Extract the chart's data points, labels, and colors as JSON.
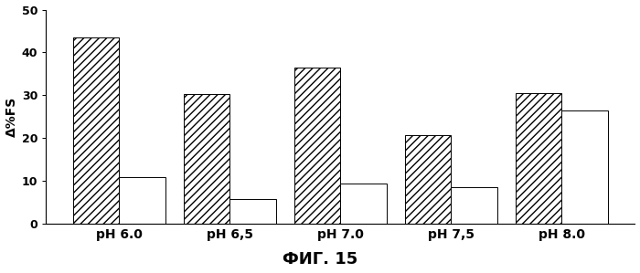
{
  "categories": [
    "pH 6.0",
    "pH 6,5",
    "pH 7.0",
    "pH 7,5",
    "pH 8.0"
  ],
  "hatched_values": [
    43.5,
    30.3,
    36.5,
    20.7,
    30.5
  ],
  "white_values": [
    10.8,
    5.8,
    9.3,
    8.5,
    26.5
  ],
  "ylabel": "Δ%FS",
  "ylim": [
    0,
    50
  ],
  "yticks": [
    0,
    10,
    20,
    30,
    40,
    50
  ],
  "xlabel_fig": "ФИГ. 15",
  "bar_width": 0.42,
  "hatched_color": "#ffffff",
  "hatched_edgecolor": "#000000",
  "white_color": "#ffffff",
  "white_edgecolor": "#000000",
  "hatch_pattern": "////",
  "background_color": "#ffffff",
  "fig_label_fontsize": 13,
  "axis_label_fontsize": 10,
  "tick_fontsize": 9,
  "xlabel_fontsize": 10
}
